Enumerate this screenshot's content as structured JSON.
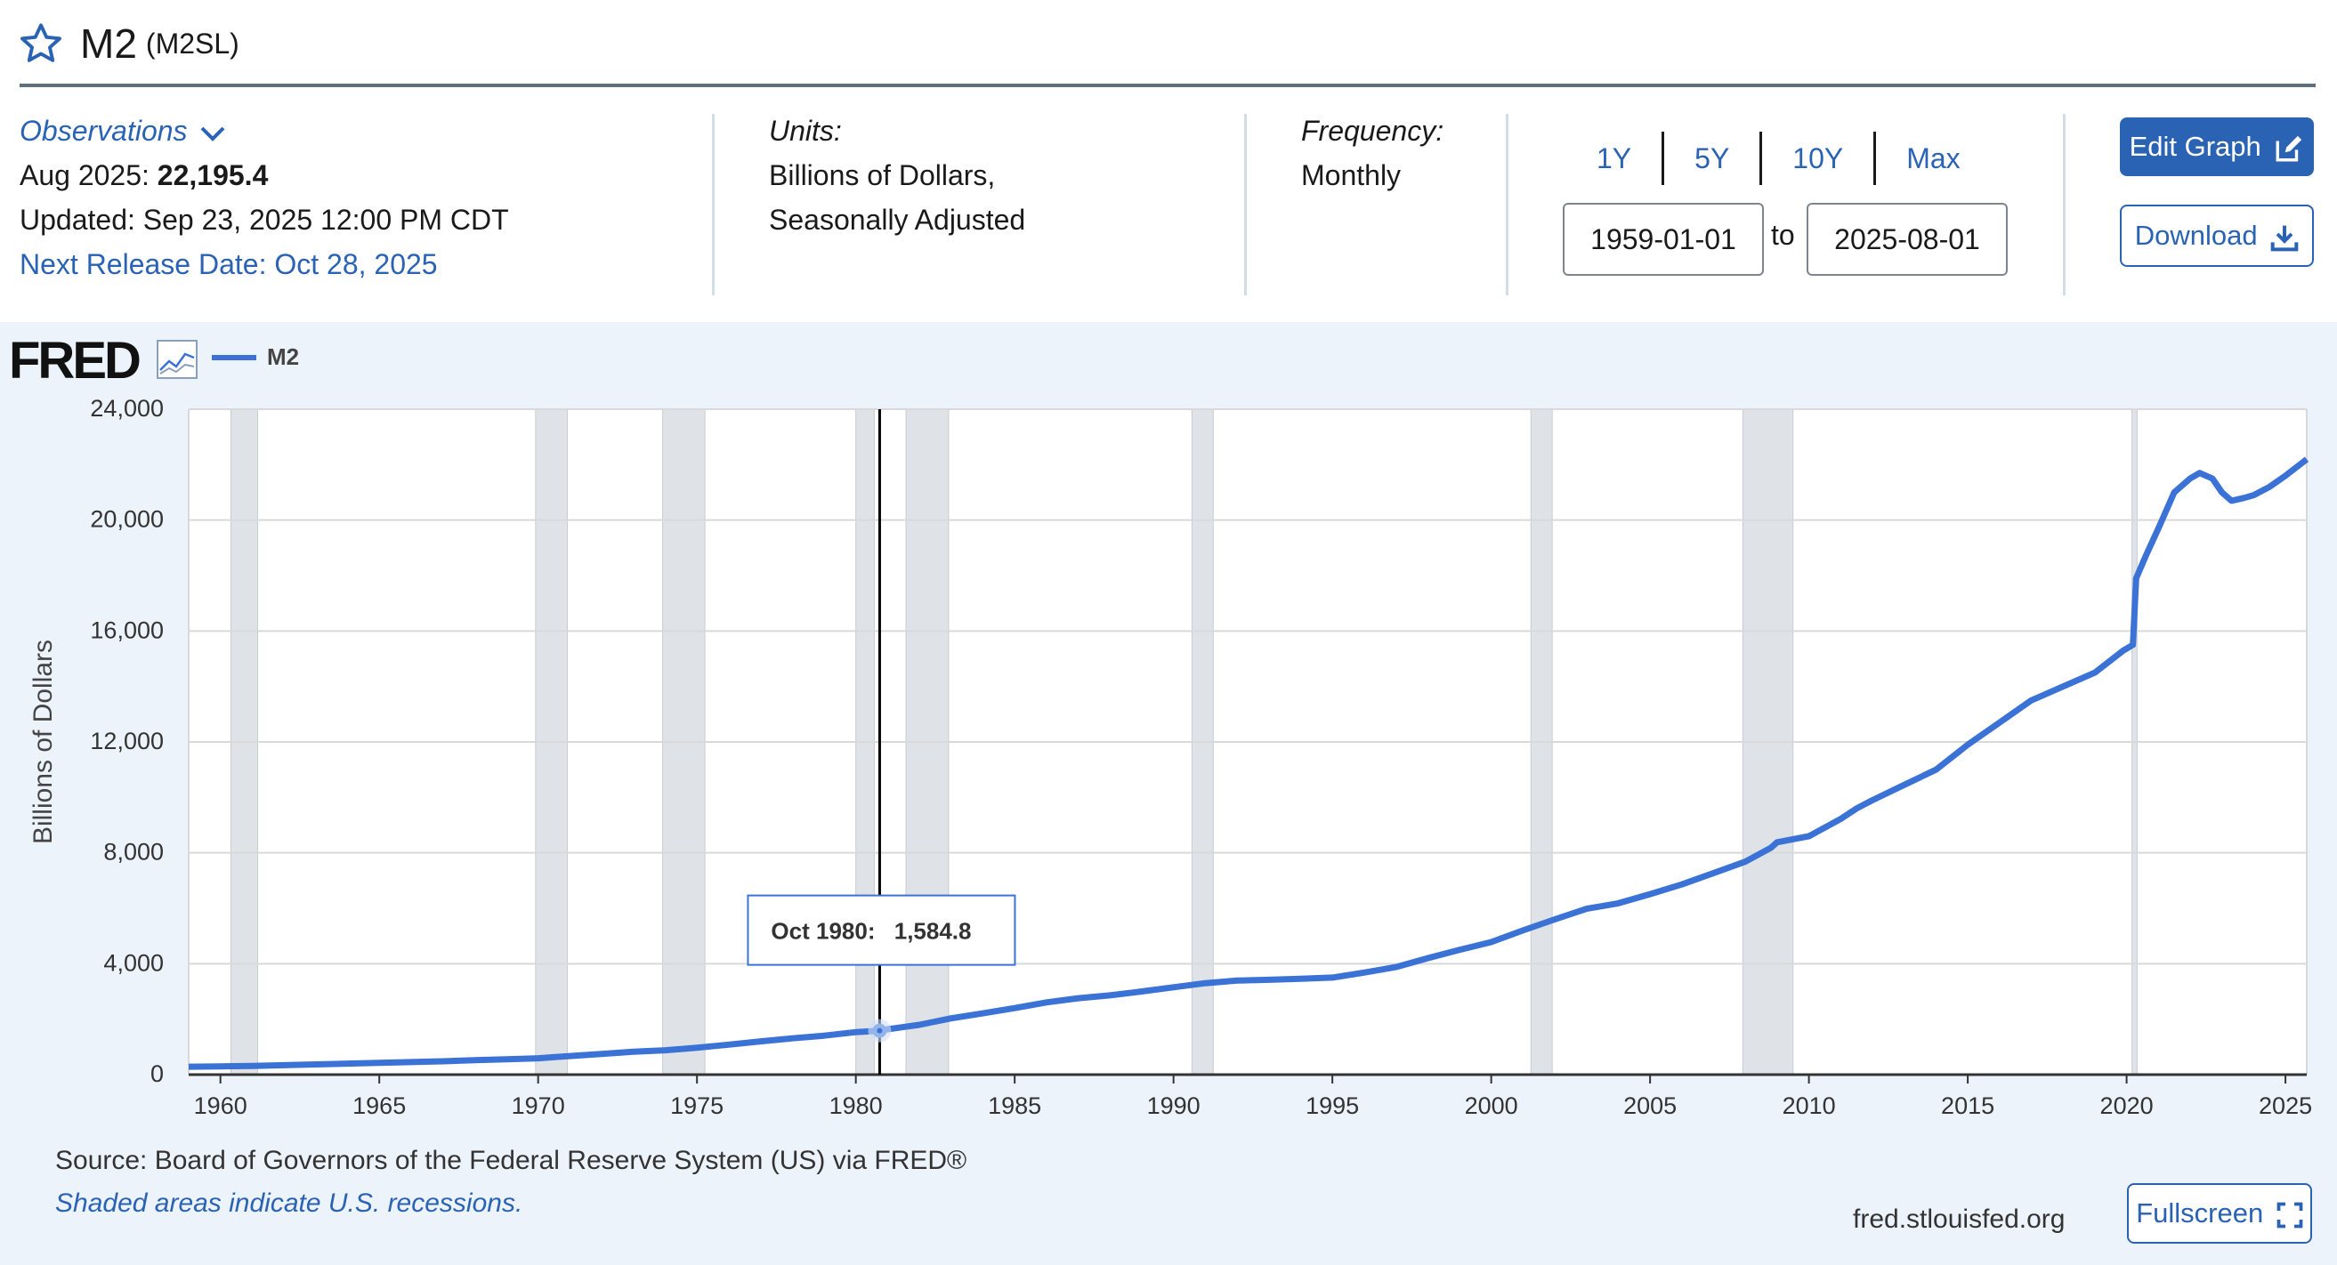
{
  "header": {
    "title": "M2",
    "series_id": "(M2SL)"
  },
  "observations": {
    "label": "Observations",
    "date_label": "Aug 2025:",
    "value": "22,195.4",
    "updated": "Updated: Sep 23, 2025 12:00 PM CDT",
    "next_release": "Next Release Date: Oct 28, 2025"
  },
  "units": {
    "label": "Units:",
    "line1": "Billions of Dollars,",
    "line2": "Seasonally Adjusted"
  },
  "frequency": {
    "label": "Frequency:",
    "value": "Monthly"
  },
  "range_buttons": [
    "1Y",
    "5Y",
    "10Y",
    "Max"
  ],
  "date_range": {
    "start": "1959-01-01",
    "to": "to",
    "end": "2025-08-01"
  },
  "buttons": {
    "edit": "Edit Graph",
    "download": "Download",
    "fullscreen": "Fullscreen"
  },
  "chart_meta": {
    "logo": "FRED",
    "legend": "M2"
  },
  "footer": {
    "source": "Source: Board of Governors of the Federal Reserve System (US) via FRED®",
    "shaded": "Shaded areas indicate U.S. recessions.",
    "site": "fred.stlouisfed.org"
  },
  "colors": {
    "series": "#3b72d6",
    "accent": "#2a62b4",
    "recession": "#dfe3e8"
  },
  "chart_data": {
    "type": "line",
    "title": "",
    "xlabel": "",
    "ylabel": "Billions of Dollars",
    "xlim": [
      1959.0,
      2025.67
    ],
    "ylim": [
      0,
      24000
    ],
    "yticks": [
      0,
      4000,
      8000,
      12000,
      16000,
      20000,
      24000
    ],
    "ytick_labels": [
      "0",
      "4,000",
      "8,000",
      "12,000",
      "16,000",
      "20,000",
      "24,000"
    ],
    "xticks": [
      1960,
      1965,
      1970,
      1975,
      1980,
      1985,
      1990,
      1995,
      2000,
      2005,
      2010,
      2015,
      2020,
      2025
    ],
    "grid": true,
    "legend_position": "top-left",
    "recessions": [
      [
        1960.33,
        1961.17
      ],
      [
        1969.92,
        1970.92
      ],
      [
        1973.92,
        1975.25
      ],
      [
        1980.0,
        1980.58
      ],
      [
        1981.58,
        1982.92
      ],
      [
        1990.58,
        1991.25
      ],
      [
        2001.25,
        2001.92
      ],
      [
        2007.92,
        2009.5
      ],
      [
        2020.17,
        2020.33
      ]
    ],
    "series": [
      {
        "name": "M2",
        "x": [
          1959.0,
          1960.0,
          1961.0,
          1962.0,
          1963.0,
          1964.0,
          1965.0,
          1966.0,
          1967.0,
          1968.0,
          1969.0,
          1970.0,
          1971.0,
          1972.0,
          1973.0,
          1974.0,
          1975.0,
          1976.0,
          1977.0,
          1978.0,
          1979.0,
          1980.0,
          1980.75,
          1981.0,
          1982.0,
          1983.0,
          1984.0,
          1985.0,
          1986.0,
          1987.0,
          1988.0,
          1989.0,
          1990.0,
          1991.0,
          1992.0,
          1993.0,
          1994.0,
          1995.0,
          1996.0,
          1997.0,
          1998.0,
          1999.0,
          2000.0,
          2001.0,
          2002.0,
          2003.0,
          2004.0,
          2005.0,
          2006.0,
          2007.0,
          2008.0,
          2008.8,
          2009.0,
          2010.0,
          2011.0,
          2011.5,
          2012.0,
          2013.0,
          2014.0,
          2015.0,
          2016.0,
          2017.0,
          2018.0,
          2019.0,
          2019.9,
          2020.2,
          2020.3,
          2020.6,
          2021.0,
          2021.5,
          2022.0,
          2022.3,
          2022.7,
          2023.0,
          2023.3,
          2023.7,
          2024.0,
          2024.5,
          2025.0,
          2025.67
        ],
        "values": [
          286,
          300,
          315,
          340,
          368,
          398,
          427,
          452,
          480,
          521,
          556,
          591,
          670,
          748,
          824,
          880,
          968,
          1080,
          1199,
          1308,
          1405,
          1533,
          1584.8,
          1637,
          1796,
          2030,
          2210,
          2400,
          2605,
          2755,
          2860,
          3000,
          3150,
          3300,
          3390,
          3420,
          3460,
          3500,
          3680,
          3880,
          4200,
          4500,
          4780,
          5200,
          5600,
          5980,
          6180,
          6510,
          6860,
          7270,
          7680,
          8180,
          8380,
          8600,
          9220,
          9600,
          9900,
          10450,
          11000,
          11900,
          12700,
          13500,
          14000,
          14500,
          15300,
          15500,
          17900,
          18700,
          19700,
          21000,
          21500,
          21700,
          21500,
          21000,
          20700,
          20800,
          20900,
          21200,
          21600,
          22195.4
        ]
      }
    ],
    "tooltip": {
      "date": "Oct 1980:",
      "value": "1,584.8",
      "x": 1980.75
    }
  }
}
